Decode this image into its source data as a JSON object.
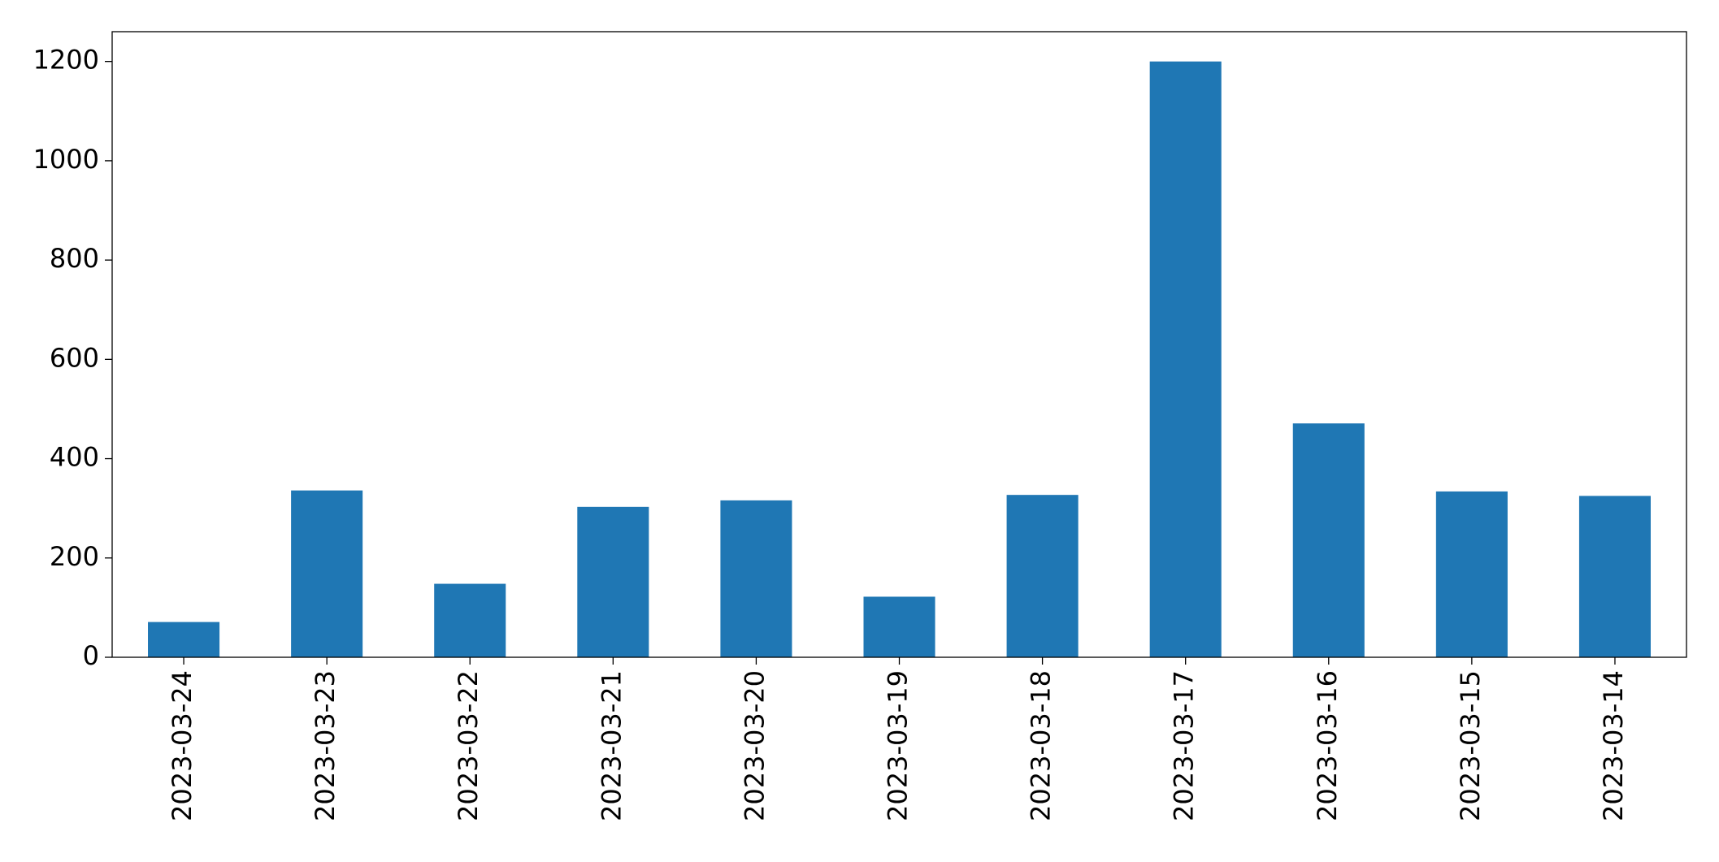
{
  "chart_data": {
    "type": "bar",
    "categories": [
      "2023-03-24",
      "2023-03-23",
      "2023-03-22",
      "2023-03-21",
      "2023-03-20",
      "2023-03-19",
      "2023-03-18",
      "2023-03-17",
      "2023-03-16",
      "2023-03-15",
      "2023-03-14"
    ],
    "values": [
      71,
      336,
      148,
      303,
      316,
      122,
      327,
      1200,
      471,
      334,
      325
    ],
    "color": "#1f77b4",
    "ylim": [
      0,
      1260
    ],
    "yticks": [
      0,
      200,
      400,
      600,
      800,
      1000,
      1200
    ],
    "grid": false
  }
}
